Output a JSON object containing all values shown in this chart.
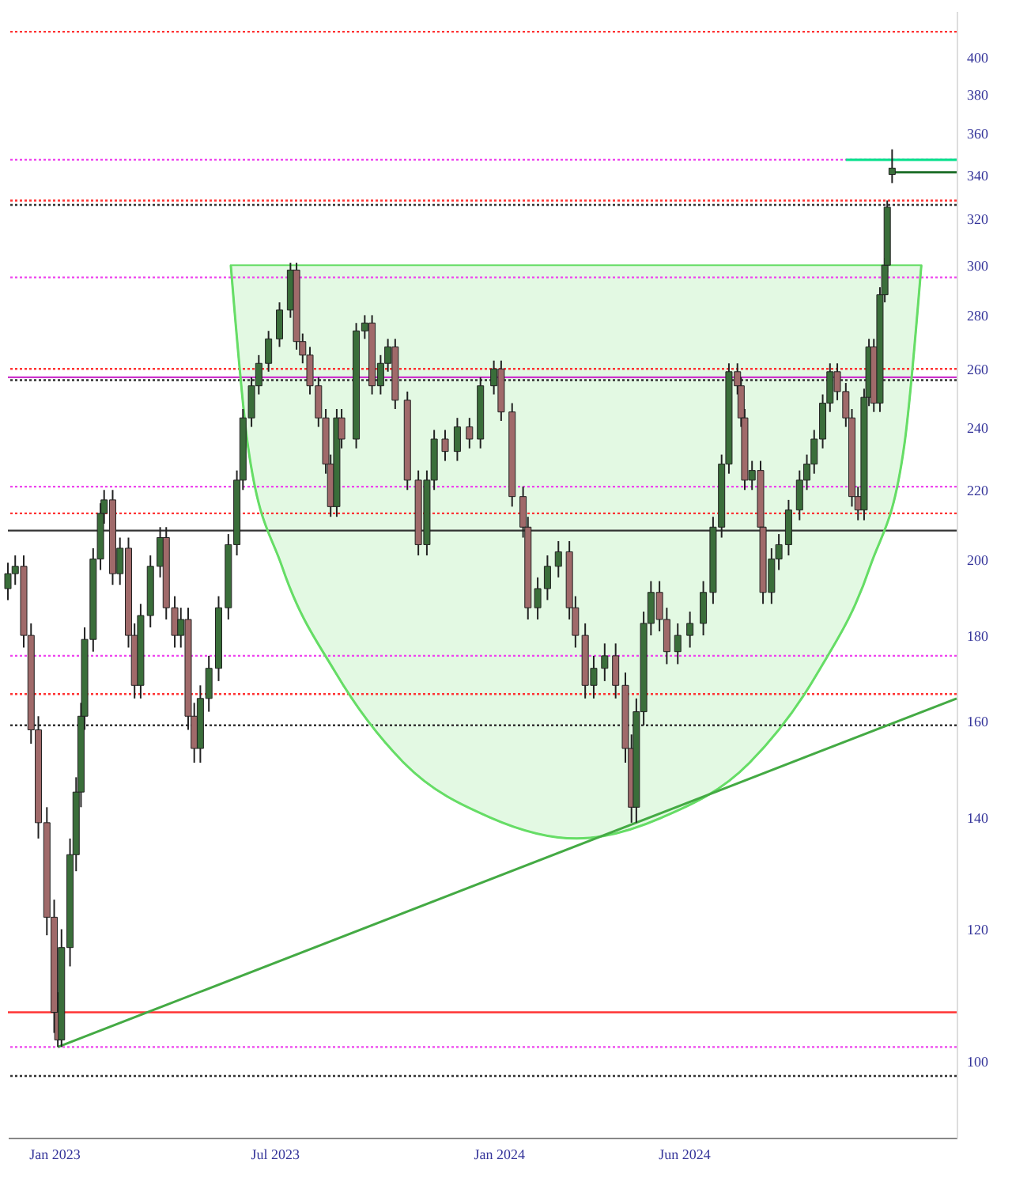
{
  "chart_data": {
    "type": "candlestick",
    "log": true,
    "colors": [
      "#3a6e3a",
      "#3a6e3a",
      "#a06a6a",
      "#a06a6a",
      "#a06a6a",
      "#a06a6a",
      "#a06a6a",
      "#a06a6a",
      "#3a6e3a",
      "#3a6e3a",
      "#3a6e3a",
      "#3a6e3a",
      "#3a6e3a",
      "#3a6e3a",
      "#3a6e3a",
      "#3a6e3a",
      "#a06a6a",
      "#3a6e3a",
      "#a06a6a",
      "#a06a6a",
      "#3a6e3a",
      "#3a6e3a",
      "#3a6e3a",
      "#a06a6a",
      "#a06a6a",
      "#3a6e3a",
      "#a06a6a",
      "#a06a6a",
      "#3a6e3a",
      "#3a6e3a",
      "#3a6e3a",
      "#3a6e3a",
      "#3a6e3a",
      "#3a6e3a",
      "#3a6e3a",
      "#3a6e3a",
      "#3a6e3a",
      "#3a6e3a",
      "#3a6e3a",
      "#a06a6a",
      "#a06a6a",
      "#a06a6a",
      "#a06a6a",
      "#a06a6a",
      "#a06a6a",
      "#3a6e3a",
      "#a06a6a",
      "#3a6e3a",
      "#3a6e3a",
      "#a06a6a",
      "#3a6e3a",
      "#3a6e3a",
      "#a06a6a",
      "#a06a6a",
      "#a06a6a",
      "#3a6e3a",
      "#3a6e3a",
      "#a06a6a",
      "#3a6e3a",
      "#a06a6a",
      "#3a6e3a",
      "#3a6e3a",
      "#a06a6a",
      "#a06a6a",
      "#a06a6a",
      "#a06a6a",
      "#3a6e3a",
      "#3a6e3a",
      "#3a6e3a",
      "#a06a6a",
      "#a06a6a",
      "#a06a6a",
      "#3a6e3a",
      "#3a6e3a",
      "#a06a6a",
      "#a06a6a",
      "#a06a6a",
      "#3a6e3a",
      "#3a6e3a",
      "#3a6e3a",
      "#a06a6a",
      "#a06a6a",
      "#3a6e3a",
      "#3a6e3a",
      "#3a6e3a",
      "#3a6e3a",
      "#3a6e3a",
      "#3a6e3a",
      "#a06a6a",
      "#a06a6a",
      "#a06a6a",
      "#3a6e3a",
      "#a06a6a",
      "#a06a6a",
      "#3a6e3a",
      "#3a6e3a",
      "#3a6e3a",
      "#3a6e3a",
      "#3a6e3a",
      "#3a6e3a",
      "#3a6e3a",
      "#3a6e3a",
      "#a06a6a",
      "#a06a6a",
      "#a06a6a",
      "#a06a6a",
      "#3a6e3a",
      "#3a6e3a",
      "#a06a6a",
      "#3a6e3a",
      "#3a6e3a",
      "#3a6e3a",
      "#3a6e3a"
    ],
    "x": [
      "2022-11-24",
      "2022-11-30",
      "2022-12-07",
      "2022-12-13",
      "2022-12-19",
      "2022-12-26",
      "2023-01-01",
      "2023-01-04",
      "2023-01-07",
      "2023-01-14",
      "2023-01-19",
      "2023-01-23",
      "2023-01-26",
      "2023-02-02",
      "2023-02-08",
      "2023-02-11",
      "2023-02-18",
      "2023-02-24",
      "2023-03-03",
      "2023-03-08",
      "2023-03-13",
      "2023-03-21",
      "2023-03-29",
      "2023-04-03",
      "2023-04-10",
      "2023-04-15",
      "2023-04-21",
      "2023-04-26",
      "2023-05-01",
      "2023-05-08",
      "2023-05-16",
      "2023-05-24",
      "2023-05-31",
      "2023-06-05",
      "2023-06-12",
      "2023-06-18",
      "2023-06-26",
      "2023-07-05",
      "2023-07-14",
      "2023-07-19",
      "2023-07-24",
      "2023-07-30",
      "2023-08-06",
      "2023-08-12",
      "2023-08-16",
      "2023-08-21",
      "2023-08-25",
      "2023-09-06",
      "2023-09-13",
      "2023-09-19",
      "2023-09-26",
      "2023-10-02",
      "2023-10-08",
      "2023-10-18",
      "2023-10-27",
      "2023-11-03",
      "2023-11-09",
      "2023-11-18",
      "2023-11-28",
      "2023-12-08",
      "2023-12-17",
      "2023-12-28",
      "2024-01-03",
      "2024-01-12",
      "2024-01-21",
      "2024-01-25",
      "2024-02-02",
      "2024-02-10",
      "2024-02-19",
      "2024-02-28",
      "2024-03-04",
      "2024-03-12",
      "2024-03-19",
      "2024-03-28",
      "2024-04-06",
      "2024-04-14",
      "2024-04-19",
      "2024-04-23",
      "2024-04-29",
      "2024-05-05",
      "2024-05-12",
      "2024-05-18",
      "2024-05-27",
      "2024-06-06",
      "2024-06-17",
      "2024-06-25",
      "2024-07-02",
      "2024-07-08",
      "2024-07-15",
      "2024-07-18",
      "2024-07-21",
      "2024-07-27",
      "2024-08-03",
      "2024-08-05",
      "2024-08-12",
      "2024-08-18",
      "2024-08-26",
      "2024-09-04",
      "2024-09-10",
      "2024-09-16",
      "2024-09-23",
      "2024-09-29",
      "2024-10-05",
      "2024-10-12",
      "2024-10-17",
      "2024-10-22",
      "2024-10-27",
      "2024-10-31",
      "2024-11-04",
      "2024-11-09",
      "2024-11-13",
      "2024-11-15",
      "2024-11-19"
    ],
    "ohlc": [
      [
        192,
        199,
        189,
        196
      ],
      [
        196,
        201,
        193,
        198
      ],
      [
        198,
        201,
        177,
        180
      ],
      [
        180,
        183,
        155,
        158
      ],
      [
        158,
        161,
        136,
        139
      ],
      [
        139,
        142,
        119,
        122
      ],
      [
        122,
        125,
        104,
        107
      ],
      [
        107,
        110,
        102,
        103
      ],
      [
        103,
        120,
        102,
        117
      ],
      [
        117,
        136,
        114,
        133
      ],
      [
        133,
        148,
        130,
        145
      ],
      [
        145,
        164,
        142,
        161
      ],
      [
        161,
        182,
        158,
        179
      ],
      [
        179,
        203,
        176,
        200
      ],
      [
        200,
        216,
        197,
        213
      ],
      [
        213,
        220,
        210,
        217
      ],
      [
        217,
        220,
        193,
        196
      ],
      [
        196,
        206,
        193,
        203
      ],
      [
        203,
        206,
        177,
        180
      ],
      [
        180,
        183,
        165,
        168
      ],
      [
        168,
        188,
        165,
        185
      ],
      [
        185,
        201,
        182,
        198
      ],
      [
        198,
        209,
        195,
        206
      ],
      [
        206,
        209,
        184,
        187
      ],
      [
        187,
        190,
        177,
        180
      ],
      [
        180,
        187,
        177,
        184
      ],
      [
        184,
        187,
        158,
        161
      ],
      [
        161,
        164,
        151,
        154
      ],
      [
        154,
        168,
        151,
        165
      ],
      [
        165,
        175,
        162,
        172
      ],
      [
        172,
        190,
        169,
        187
      ],
      [
        187,
        207,
        184,
        204
      ],
      [
        204,
        226,
        201,
        223
      ],
      [
        223,
        246,
        220,
        243
      ],
      [
        243,
        257,
        240,
        254
      ],
      [
        254,
        265,
        251,
        262
      ],
      [
        262,
        274,
        259,
        271
      ],
      [
        271,
        285,
        268,
        282
      ],
      [
        282,
        301,
        279,
        298
      ],
      [
        298,
        301,
        267,
        270
      ],
      [
        270,
        273,
        262,
        265
      ],
      [
        265,
        268,
        251,
        254
      ],
      [
        254,
        257,
        240,
        243
      ],
      [
        243,
        246,
        225,
        228
      ],
      [
        228,
        231,
        212,
        215
      ],
      [
        215,
        246,
        212,
        243
      ],
      [
        243,
        246,
        233,
        236
      ],
      [
        236,
        277,
        233,
        274
      ],
      [
        274,
        280,
        271,
        277
      ],
      [
        277,
        280,
        251,
        254
      ],
      [
        254,
        265,
        251,
        262
      ],
      [
        262,
        271,
        259,
        268
      ],
      [
        268,
        271,
        246,
        249
      ],
      [
        249,
        252,
        220,
        223
      ],
      [
        223,
        226,
        201,
        204
      ],
      [
        204,
        226,
        201,
        223
      ],
      [
        223,
        239,
        220,
        236
      ],
      [
        236,
        239,
        229,
        232
      ],
      [
        232,
        243,
        229,
        240
      ],
      [
        240,
        243,
        233,
        236
      ],
      [
        236,
        257,
        233,
        254
      ],
      [
        254,
        263,
        251,
        260
      ],
      [
        260,
        263,
        242,
        245
      ],
      [
        245,
        248,
        215,
        218
      ],
      [
        218,
        221,
        206,
        209
      ],
      [
        209,
        212,
        184,
        187
      ],
      [
        187,
        195,
        184,
        192
      ],
      [
        192,
        201,
        189,
        198
      ],
      [
        198,
        205,
        195,
        202
      ],
      [
        202,
        205,
        184,
        187
      ],
      [
        187,
        190,
        177,
        180
      ],
      [
        180,
        183,
        165,
        168
      ],
      [
        168,
        175,
        165,
        172
      ],
      [
        172,
        178,
        169,
        175
      ],
      [
        175,
        178,
        165,
        168
      ],
      [
        168,
        171,
        151,
        154
      ],
      [
        154,
        157,
        139,
        142
      ],
      [
        142,
        165,
        139,
        162
      ],
      [
        162,
        186,
        159,
        183
      ],
      [
        183,
        194,
        180,
        191
      ],
      [
        191,
        194,
        181,
        184
      ],
      [
        184,
        187,
        173,
        176
      ],
      [
        176,
        183,
        173,
        180
      ],
      [
        180,
        186,
        177,
        183
      ],
      [
        183,
        194,
        180,
        191
      ],
      [
        191,
        212,
        188,
        209
      ],
      [
        209,
        231,
        206,
        228
      ],
      [
        228,
        262,
        225,
        259
      ],
      [
        259,
        262,
        251,
        254
      ],
      [
        254,
        257,
        240,
        243
      ],
      [
        243,
        246,
        220,
        223
      ],
      [
        223,
        229,
        220,
        226
      ],
      [
        226,
        229,
        206,
        209
      ],
      [
        209,
        212,
        188,
        191
      ],
      [
        191,
        203,
        188,
        200
      ],
      [
        200,
        207,
        197,
        204
      ],
      [
        204,
        217,
        201,
        214
      ],
      [
        214,
        226,
        211,
        223
      ],
      [
        223,
        231,
        220,
        228
      ],
      [
        228,
        239,
        225,
        236
      ],
      [
        236,
        251,
        233,
        248
      ],
      [
        248,
        262,
        245,
        259
      ],
      [
        259,
        262,
        249,
        252
      ],
      [
        252,
        255,
        240,
        243
      ],
      [
        243,
        246,
        215,
        218
      ],
      [
        218,
        221,
        211,
        214
      ],
      [
        214,
        253,
        211,
        250
      ],
      [
        250,
        271,
        247,
        268
      ],
      [
        268,
        271,
        245,
        248
      ],
      [
        248,
        291,
        245,
        288
      ],
      [
        288,
        303,
        285,
        300
      ],
      [
        300,
        328,
        297,
        325
      ],
      [
        340,
        352,
        336,
        343
      ]
    ],
    "series": [
      {
        "type": "line",
        "color": "#66dd66",
        "x": [
          "2023-05-26",
          "2023-06-09",
          "2023-07-07",
          "2023-08-20",
          "2023-10-15",
          "2023-12-25",
          "2024-03-05",
          "2024-05-14",
          "2024-07-25",
          "2024-09-19",
          "2024-11-01",
          "2024-11-29",
          "2024-12-13"
        ],
        "values": [
          300,
          234,
          198,
          171,
          151,
          140,
          136,
          140,
          151,
          171,
          198,
          234,
          300
        ],
        "lower": [
          300,
          234,
          198,
          171,
          151,
          140,
          136,
          140,
          151,
          171,
          198,
          234,
          300
        ],
        "upper": [
          300,
          300,
          300,
          300,
          300,
          300,
          300,
          300,
          300,
          300,
          300,
          300,
          300
        ]
      },
      {
        "type": "line",
        "color": "#44aa44",
        "x": [
          "2023-01-04",
          "2025-01-11"
        ],
        "values": [
          102,
          165
        ]
      },
      {
        "type": "line",
        "color": "#00e08a",
        "x": [
          "2024-10-12",
          "2025-01-11"
        ],
        "values": [
          347,
          347
        ]
      },
      {
        "type": "line",
        "color": "#1f6f2a",
        "x": [
          "2024-11-19",
          "2025-01-11"
        ],
        "values": [
          341,
          341
        ]
      }
    ],
    "ref_lines": [
      {
        "axis": "y",
        "value": 414,
        "color": "#ff3333",
        "line_style": "dotted"
      },
      {
        "axis": "y",
        "value": 347,
        "color": "#ee44ee",
        "line_style": "dotted"
      },
      {
        "axis": "y",
        "value": 328,
        "color": "#ff3333",
        "line_style": "dotted"
      },
      {
        "axis": "y",
        "value": 326,
        "color": "#333333",
        "line_style": "dotted"
      },
      {
        "axis": "y",
        "value": 295,
        "color": "#ee44ee",
        "line_style": "dotted"
      },
      {
        "axis": "y",
        "value": 260,
        "color": "#ff3333",
        "line_style": "dotted"
      },
      {
        "axis": "y",
        "value": 257,
        "color": "#cc33cc",
        "line_style": "solid"
      },
      {
        "axis": "y",
        "value": 256,
        "color": "#333333",
        "line_style": "dotted"
      },
      {
        "axis": "y",
        "value": 221,
        "color": "#ee44ee",
        "line_style": "dotted"
      },
      {
        "axis": "y",
        "value": 213,
        "color": "#ff3333",
        "line_style": "dotted"
      },
      {
        "axis": "y",
        "value": 208,
        "color": "#333333",
        "line_style": "solid"
      },
      {
        "axis": "y",
        "value": 175,
        "color": "#ee44ee",
        "line_style": "dotted"
      },
      {
        "axis": "y",
        "value": 166,
        "color": "#ff3333",
        "line_style": "dotted"
      },
      {
        "axis": "y",
        "value": 159,
        "color": "#333333",
        "line_style": "dotted"
      },
      {
        "axis": "y",
        "value": 107,
        "color": "#ff3333",
        "line_style": "solid"
      },
      {
        "axis": "y",
        "value": 102,
        "color": "#ee44ee",
        "line_style": "dotted"
      },
      {
        "axis": "y",
        "value": 98,
        "color": "#333333",
        "line_style": "dotted"
      }
    ],
    "xlim": [
      "2022-11-24",
      "2025-01-11"
    ],
    "xticks": [
      {
        "value": "2023-01-01",
        "label": "Jan 2023"
      },
      {
        "value": "2023-07-01",
        "label": "Jul 2023"
      },
      {
        "value": "2024-01-01",
        "label": "Jan 2024"
      },
      {
        "value": "2024-06-01",
        "label": "Jun 2024"
      }
    ],
    "ylim": [
      90,
      426
    ],
    "yticks": [
      100,
      120,
      140,
      160,
      180,
      200,
      220,
      240,
      260,
      280,
      300,
      320,
      340,
      360,
      380,
      400
    ]
  }
}
